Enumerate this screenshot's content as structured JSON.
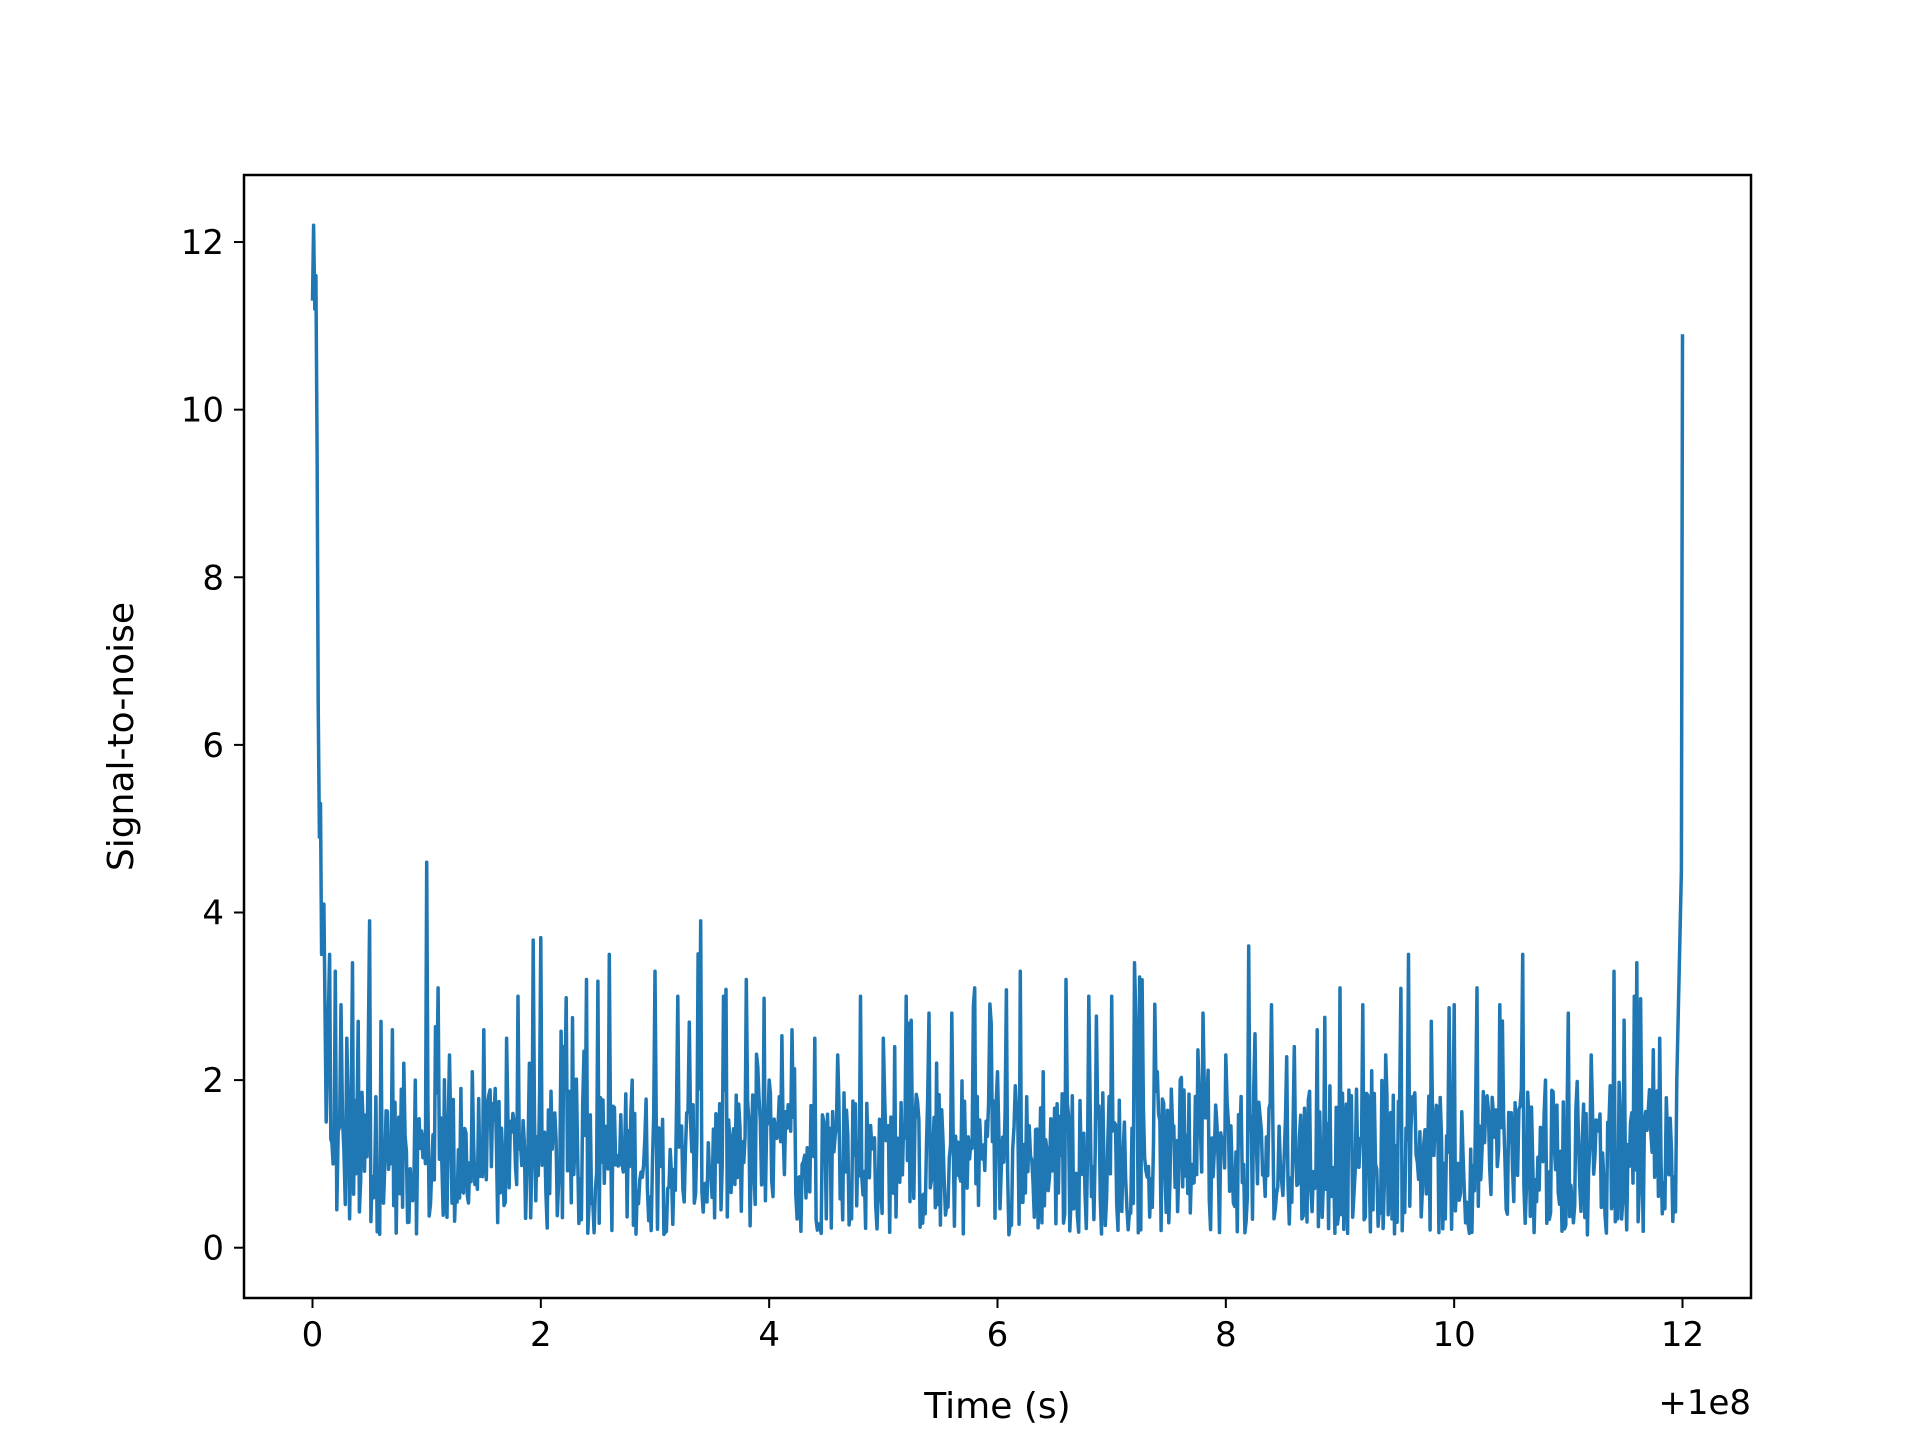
{
  "chart_data": {
    "type": "line",
    "title": "",
    "xlabel": "Time (s)",
    "ylabel": "Signal-to-noise",
    "x_offset_label": "+1e8",
    "x_offset": 100000000,
    "xlim": [
      -0.6,
      12.6
    ],
    "ylim": [
      -0.6,
      12.8
    ],
    "x_ticks": [
      0,
      2,
      4,
      6,
      8,
      10,
      12
    ],
    "x_tick_labels": [
      "0",
      "2",
      "4",
      "6",
      "8",
      "10",
      "12"
    ],
    "y_ticks": [
      0,
      2,
      4,
      6,
      8,
      10,
      12
    ],
    "y_tick_labels": [
      "0",
      "2",
      "4",
      "6",
      "8",
      "10",
      "12"
    ],
    "grid": false,
    "legend": "none",
    "line_color": "#1f77b4",
    "series": [
      {
        "x": [
          0.0,
          0.01,
          0.02,
          0.03,
          0.04,
          0.05,
          0.06,
          0.07,
          0.08,
          0.1,
          0.12,
          0.15,
          0.18,
          0.2,
          0.25,
          0.3,
          0.35,
          0.4,
          0.5,
          0.6,
          0.7,
          0.8,
          0.9,
          1.0,
          1.1,
          1.2,
          1.3,
          1.4,
          1.5,
          1.6,
          1.7,
          1.8,
          1.9,
          2.0,
          2.2,
          2.4,
          2.6,
          2.8,
          3.0,
          3.2,
          3.4,
          3.6,
          3.8,
          4.0,
          4.2,
          4.4,
          4.6,
          4.8,
          5.0,
          5.2,
          5.4,
          5.6,
          5.8,
          6.0,
          6.2,
          6.4,
          6.6,
          6.8,
          7.0,
          7.2,
          7.4,
          7.6,
          7.8,
          8.0,
          8.2,
          8.4,
          8.6,
          8.8,
          9.0,
          9.2,
          9.4,
          9.6,
          9.8,
          10.0,
          10.2,
          10.4,
          10.6,
          10.8,
          11.0,
          11.2,
          11.4,
          11.6,
          11.8,
          11.95,
          11.99,
          12.0
        ],
        "y": [
          11.3,
          12.2,
          11.2,
          11.6,
          9.5,
          6.5,
          4.9,
          5.3,
          3.5,
          4.1,
          1.5,
          3.5,
          1.0,
          3.3,
          2.9,
          2.5,
          3.4,
          2.7,
          3.9,
          2.7,
          2.6,
          2.2,
          2.0,
          4.6,
          3.1,
          2.3,
          1.9,
          2.1,
          2.6,
          1.9,
          2.5,
          3.0,
          2.2,
          3.7,
          2.4,
          3.2,
          3.5,
          2.0,
          3.3,
          3.0,
          3.9,
          3.0,
          3.2,
          2.0,
          2.6,
          2.5,
          2.3,
          3.0,
          2.5,
          3.0,
          2.8,
          2.8,
          3.1,
          2.1,
          3.3,
          2.1,
          3.2,
          3.0,
          3.0,
          3.4,
          2.1,
          2.0,
          2.8,
          2.3,
          3.6,
          2.9,
          2.4,
          2.6,
          3.1,
          2.9,
          2.3,
          3.5,
          2.7,
          2.9,
          3.1,
          2.9,
          3.5,
          2.0,
          2.8,
          2.3,
          3.3,
          3.4,
          2.5,
          2.0,
          4.5,
          10.9
        ]
      }
    ]
  }
}
